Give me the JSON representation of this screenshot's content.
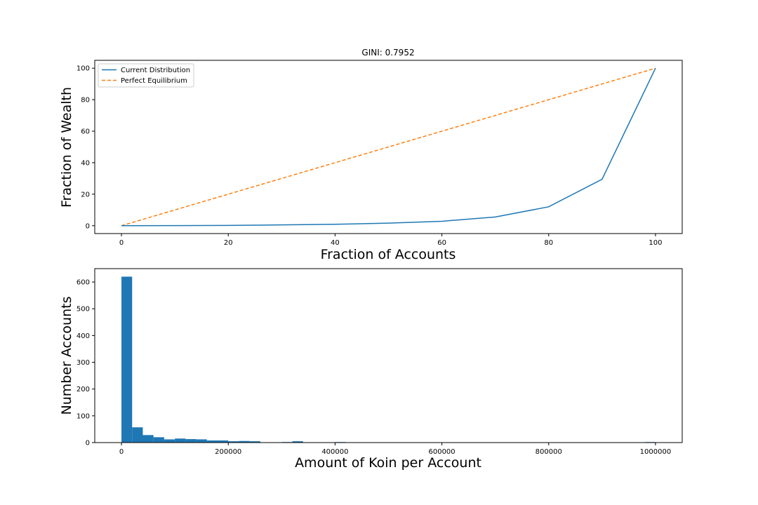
{
  "chart_data": [
    {
      "type": "line",
      "title": "GINI: 0.7952",
      "xlabel": "Fraction of Accounts",
      "ylabel": "Fraction of Wealth",
      "xlim": [
        -5,
        105
      ],
      "ylim": [
        -5,
        105
      ],
      "xticks": [
        0,
        20,
        40,
        60,
        80,
        100
      ],
      "yticks": [
        0,
        20,
        40,
        60,
        80,
        100
      ],
      "legend_position": "top-left",
      "series": [
        {
          "name": "Current Distribution",
          "color": "#1f77b4",
          "style": "solid",
          "x": [
            0,
            10,
            20,
            30,
            40,
            50,
            60,
            70,
            80,
            90,
            100
          ],
          "y": [
            0,
            0.05,
            0.2,
            0.5,
            0.9,
            1.6,
            2.8,
            5.5,
            12,
            29.5,
            100
          ]
        },
        {
          "name": "Perfect Equilibrium",
          "color": "#ff7f0e",
          "style": "dashed",
          "x": [
            0,
            100
          ],
          "y": [
            0,
            100
          ]
        }
      ]
    },
    {
      "type": "bar",
      "subtype": "histogram",
      "title": "",
      "xlabel": "Amount of Koin per Account",
      "ylabel": "Number Accounts",
      "xlim": [
        -50000,
        1050000
      ],
      "ylim": [
        0,
        650
      ],
      "xticks": [
        0,
        200000,
        400000,
        600000,
        800000,
        1000000
      ],
      "xtick_labels": [
        "0",
        "200000",
        "400000",
        "600000",
        "800000",
        "1000000"
      ],
      "yticks": [
        0,
        100,
        200,
        300,
        400,
        500,
        600
      ],
      "color": "#1f77b4",
      "bin_width": 20000,
      "bins_start": [
        0,
        20000,
        40000,
        60000,
        80000,
        100000,
        120000,
        140000,
        160000,
        180000,
        200000,
        220000,
        240000,
        260000,
        280000,
        300000,
        320000,
        340000,
        360000,
        380000,
        400000,
        980000
      ],
      "values": [
        620,
        57,
        28,
        20,
        12,
        15,
        13,
        12,
        8,
        8,
        5,
        6,
        5,
        0,
        0,
        2,
        5,
        0,
        0,
        0,
        2,
        2
      ]
    }
  ]
}
